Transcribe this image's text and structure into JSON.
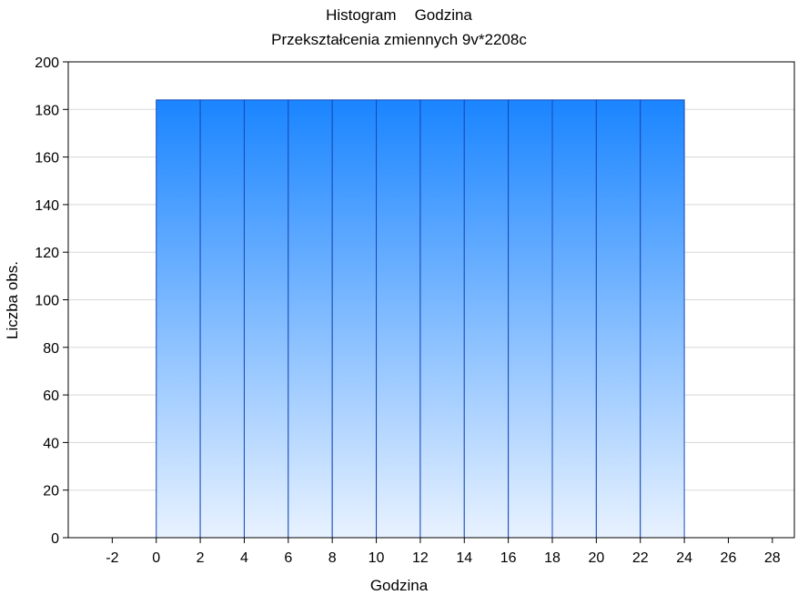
{
  "chart_data": {
    "type": "bar",
    "title": "Histogram",
    "title_variable": "Godzina",
    "subtitle": "Przekształcenia zmiennych 9v*2208c",
    "xlabel": "Godzina",
    "ylabel": "Liczba obs.",
    "xlim": [
      -4,
      29
    ],
    "ylim": [
      0,
      200
    ],
    "xticks": [
      -2,
      0,
      2,
      4,
      6,
      8,
      10,
      12,
      14,
      16,
      18,
      20,
      22,
      24,
      26,
      28
    ],
    "yticks": [
      0,
      20,
      40,
      60,
      80,
      100,
      120,
      140,
      160,
      180,
      200
    ],
    "bin_width": 2,
    "bins": [
      {
        "from": 0,
        "to": 2,
        "count": 184
      },
      {
        "from": 2,
        "to": 4,
        "count": 184
      },
      {
        "from": 4,
        "to": 6,
        "count": 184
      },
      {
        "from": 6,
        "to": 8,
        "count": 184
      },
      {
        "from": 8,
        "to": 10,
        "count": 184
      },
      {
        "from": 10,
        "to": 12,
        "count": 184
      },
      {
        "from": 12,
        "to": 14,
        "count": 184
      },
      {
        "from": 14,
        "to": 16,
        "count": 184
      },
      {
        "from": 16,
        "to": 18,
        "count": 184
      },
      {
        "from": 18,
        "to": 20,
        "count": 184
      },
      {
        "from": 20,
        "to": 22,
        "count": 184
      },
      {
        "from": 22,
        "to": 24,
        "count": 184
      }
    ],
    "grid": true,
    "colors": {
      "bar_top": "#1a85ff",
      "bar_bottom": "#e8f2ff",
      "bar_edge": "#1749b8",
      "grid": "#d8d8d8"
    }
  }
}
